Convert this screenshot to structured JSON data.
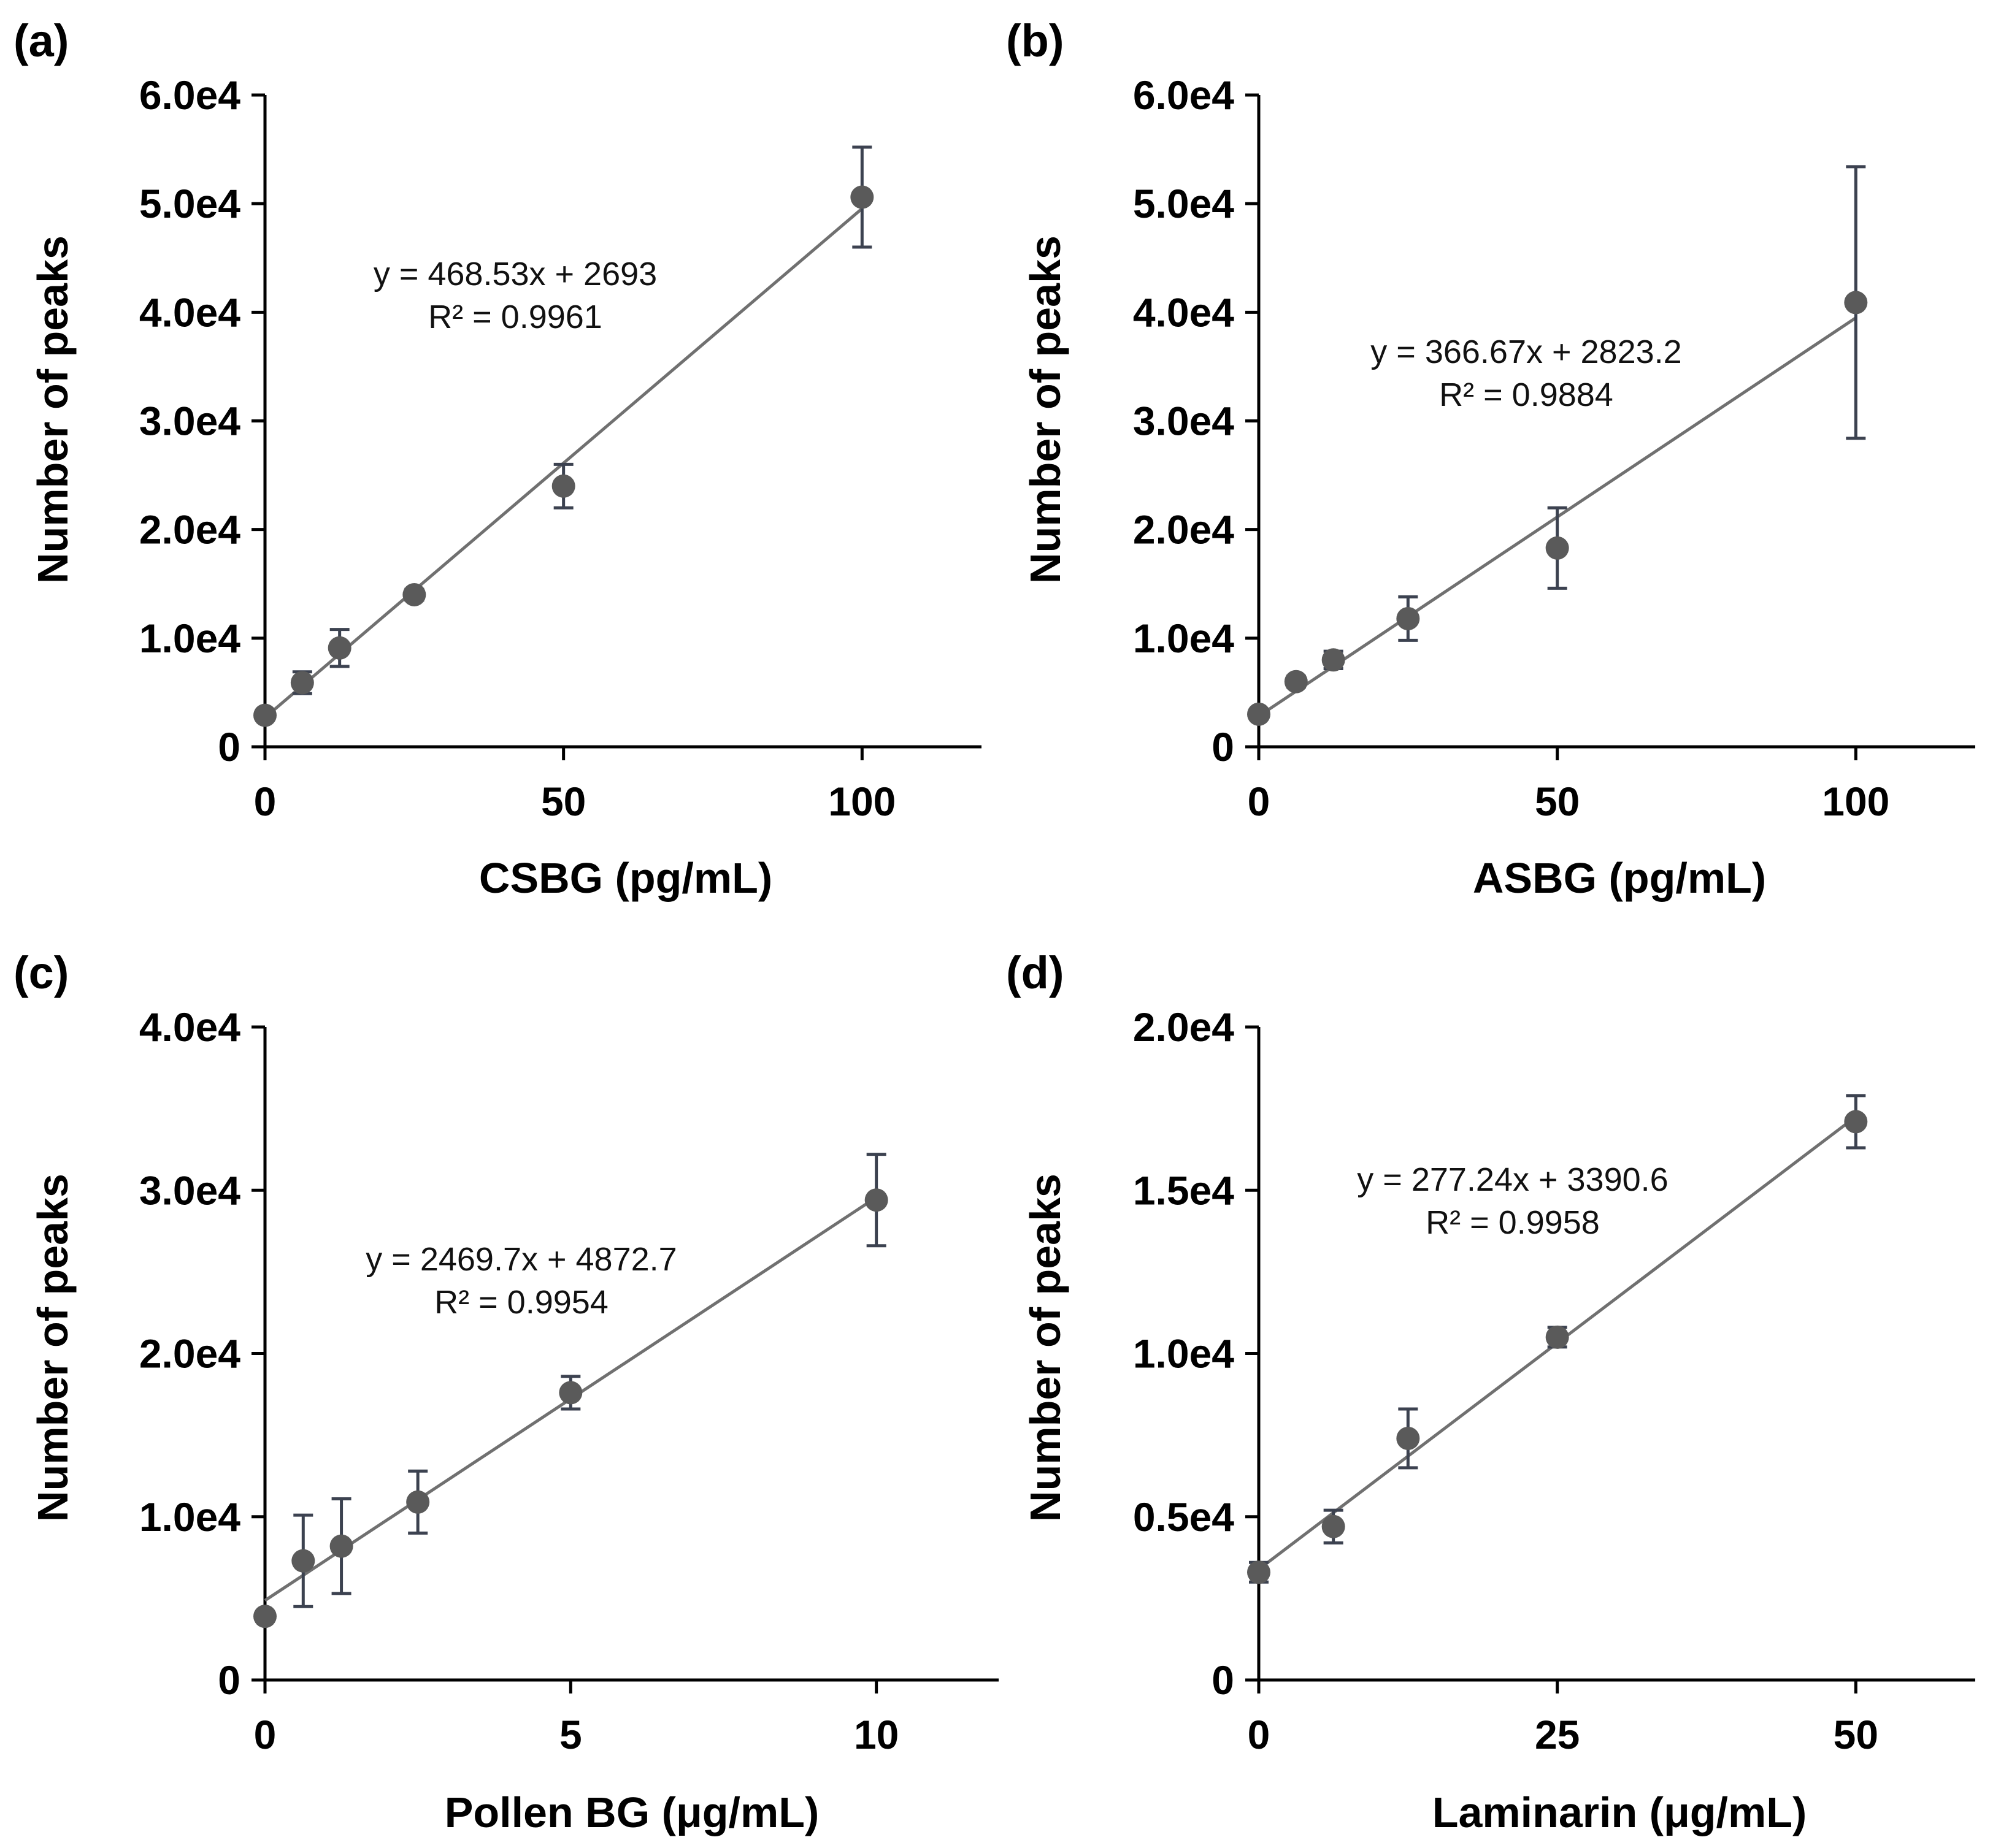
{
  "chart_data": [
    {
      "panel_label": "(a)",
      "type": "scatter",
      "xlabel": "CSBG (pg/mL)",
      "ylabel": "Number of peaks",
      "xlim": [
        0,
        120
      ],
      "ylim": [
        0,
        60000
      ],
      "x_tick_values": [
        0,
        50,
        100
      ],
      "x_tick_labels": [
        "0",
        "50",
        "100"
      ],
      "y_tick_values": [
        0,
        10000,
        20000,
        30000,
        40000,
        50000,
        60000
      ],
      "y_tick_labels": [
        "0",
        "1.0e4",
        "2.0e4",
        "3.0e4",
        "4.0e4",
        "5.0e4",
        "6.0e4"
      ],
      "grid": false,
      "series": [
        {
          "x": [
            0,
            6.25,
            12.5,
            25,
            50,
            100
          ],
          "y": [
            2900,
            5900,
            9100,
            14000,
            24000,
            50600
          ],
          "error": [
            400,
            1000,
            1700,
            500,
            2000,
            4600
          ]
        }
      ],
      "fit": {
        "slope": 468.53,
        "intercept": 2693
      },
      "annotations": [
        "y = 468.53x + 2693",
        "R² = 0.9961"
      ],
      "colors": {
        "marker": "#5a5a5a",
        "errorbar": "#3c4250",
        "fit_line": "#707070",
        "axis": "#000000"
      }
    },
    {
      "panel_label": "(b)",
      "type": "scatter",
      "xlabel": "ASBG (pg/mL)",
      "ylabel": "Number of peaks",
      "xlim": [
        0,
        120
      ],
      "ylim": [
        0,
        60000
      ],
      "x_tick_values": [
        0,
        50,
        100
      ],
      "x_tick_labels": [
        "0",
        "50",
        "100"
      ],
      "y_tick_values": [
        0,
        10000,
        20000,
        30000,
        40000,
        50000,
        60000
      ],
      "y_tick_labels": [
        "0",
        "1.0e4",
        "2.0e4",
        "3.0e4",
        "4.0e4",
        "5.0e4",
        "6.0e4"
      ],
      "grid": false,
      "series": [
        {
          "x": [
            0,
            6.25,
            12.5,
            25,
            50,
            100
          ],
          "y": [
            3000,
            6000,
            8000,
            11800,
            18300,
            40900
          ],
          "error": [
            400,
            500,
            800,
            2000,
            3700,
            12500
          ]
        }
      ],
      "fit": {
        "slope": 366.67,
        "intercept": 2823.2
      },
      "annotations": [
        "y = 366.67x + 2823.2",
        "R² = 0.9884"
      ],
      "colors": {
        "marker": "#5a5a5a",
        "errorbar": "#3c4250",
        "fit_line": "#707070",
        "axis": "#000000"
      }
    },
    {
      "panel_label": "(c)",
      "type": "scatter",
      "xlabel": "Pollen BG (μg/mL)",
      "ylabel": "Number of peaks",
      "xlim": [
        0,
        12
      ],
      "ylim": [
        0,
        40000
      ],
      "x_tick_values": [
        0,
        5,
        10
      ],
      "x_tick_labels": [
        "0",
        "5",
        "10"
      ],
      "y_tick_values": [
        0,
        10000,
        20000,
        30000,
        40000
      ],
      "y_tick_labels": [
        "0",
        "1.0e4",
        "2.0e4",
        "3.0e4",
        "4.0e4"
      ],
      "grid": false,
      "series": [
        {
          "x": [
            0,
            0.625,
            1.25,
            2.5,
            5,
            10
          ],
          "y": [
            3900,
            7300,
            8200,
            10900,
            17600,
            29400
          ],
          "error": [
            300,
            2800,
            2900,
            1900,
            1000,
            2800
          ]
        }
      ],
      "fit": {
        "slope": 2469.7,
        "intercept": 4872.7
      },
      "annotations": [
        "y = 2469.7x + 4872.7",
        "R² = 0.9954"
      ],
      "colors": {
        "marker": "#5a5a5a",
        "errorbar": "#3c4250",
        "fit_line": "#707070",
        "axis": "#000000"
      }
    },
    {
      "panel_label": "(d)",
      "type": "scatter",
      "xlabel": "Laminarin (μg/mL)",
      "ylabel": "Number of peaks",
      "xlim": [
        0,
        60
      ],
      "ylim": [
        0,
        20000
      ],
      "x_tick_values": [
        0,
        25,
        50
      ],
      "x_tick_labels": [
        "0",
        "25",
        "50"
      ],
      "y_tick_values": [
        0,
        5000,
        10000,
        15000,
        20000
      ],
      "y_tick_labels": [
        "0",
        "0.5e4",
        "1.0e4",
        "1.5e4",
        "2.0e4"
      ],
      "grid": false,
      "series": [
        {
          "x": [
            0,
            6.25,
            12.5,
            25,
            50
          ],
          "y": [
            3300,
            4700,
            7400,
            10500,
            17100
          ],
          "error": [
            300,
            500,
            900,
            300,
            800
          ]
        }
      ],
      "fit": {
        "slope": 277.24,
        "intercept": 3390.6
      },
      "annotations": [
        "y = 277.24x + 3390.6",
        "R² = 0.9958"
      ],
      "colors": {
        "marker": "#5a5a5a",
        "errorbar": "#3c4250",
        "fit_line": "#707070",
        "axis": "#000000"
      }
    }
  ]
}
